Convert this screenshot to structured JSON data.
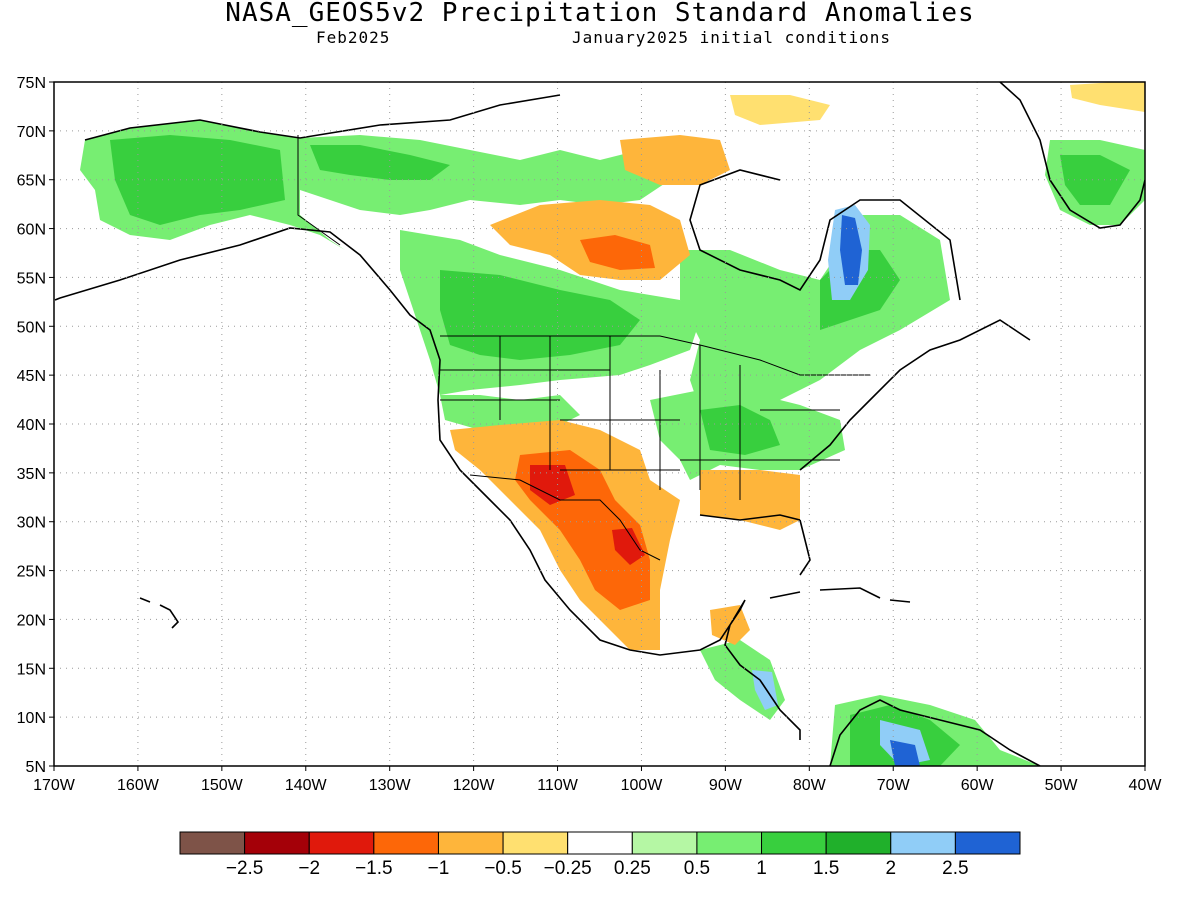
{
  "title": "NASA_GEOS5v2 Precipitation Standard Anomalies",
  "subtitle_left": "Feb2025",
  "subtitle_right": "January2025 initial conditions",
  "map": {
    "lon_range": [
      -170,
      -40
    ],
    "lat_range": [
      5,
      75
    ],
    "lon_ticks": [
      "170W",
      "160W",
      "150W",
      "140W",
      "130W",
      "120W",
      "110W",
      "100W",
      "90W",
      "80W",
      "70W",
      "60W",
      "50W",
      "40W"
    ],
    "lat_ticks": [
      "5N",
      "10N",
      "15N",
      "20N",
      "25N",
      "30N",
      "35N",
      "40N",
      "45N",
      "50N",
      "55N",
      "60N",
      "65N",
      "70N",
      "75N"
    ],
    "grid": "dotted"
  },
  "colorbar": {
    "colors": [
      "#7e5348",
      "#a40008",
      "#e0190c",
      "#fd6708",
      "#feb53b",
      "#ffe070",
      "#ffffff",
      "#b5f7a4",
      "#77ee72",
      "#38cf3e",
      "#20b02b",
      "#90cdf7",
      "#1f63d4"
    ],
    "labels": [
      "−2.5",
      "−2",
      "−1.5",
      "−1",
      "−0.5",
      "−0.25",
      "0.25",
      "0.5",
      "1",
      "1.5",
      "2",
      "2.5"
    ]
  }
}
